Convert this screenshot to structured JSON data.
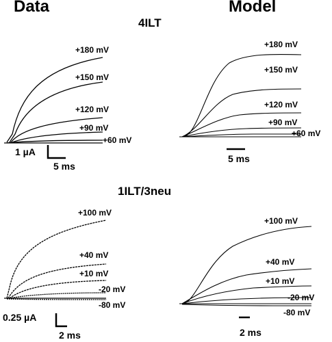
{
  "columns": {
    "left": "Data",
    "right": "Model"
  },
  "panels": [
    {
      "title": "4ILT",
      "data": {
        "traces": [
          "+180 mV",
          "+150 mV",
          "+120 mV",
          "+90 mV",
          "+60 mV"
        ],
        "scale_y": "1 µA",
        "scale_x": "5 ms"
      },
      "model": {
        "traces": [
          "+180 mV",
          "+150 mV",
          "+120 mV",
          "+90 mV",
          "+60 mV"
        ],
        "scale_x": "5 ms"
      }
    },
    {
      "title": "1ILT/3neu",
      "data": {
        "traces": [
          "+100 mV",
          "+40 mV",
          "+10 mV",
          "-20 mV",
          "-80 mV"
        ],
        "scale_y": "0.25 µA",
        "scale_x": "2 ms"
      },
      "model": {
        "traces": [
          "+100 mV",
          "+40 mV",
          "+10 mV",
          "-20 mV",
          "-80 mV"
        ],
        "scale_x": "2 ms"
      }
    }
  ]
}
